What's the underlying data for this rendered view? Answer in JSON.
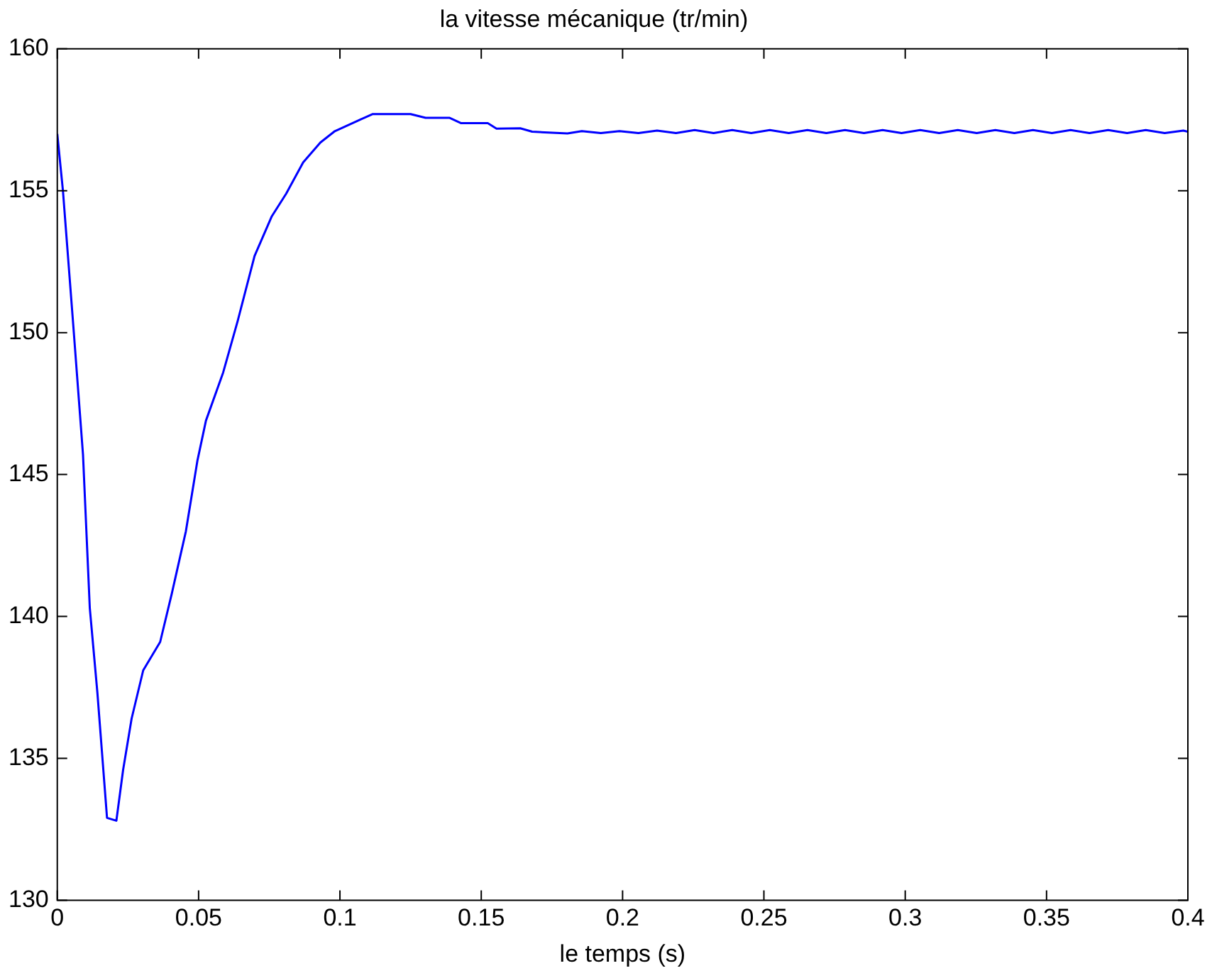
{
  "chart_data": {
    "type": "line",
    "title": "la vitesse mécanique (tr/min)",
    "xlabel": "le temps (s)",
    "xlim": [
      0,
      0.4
    ],
    "xticks": [
      0,
      0.05,
      0.1,
      0.15,
      0.2,
      0.25,
      0.3,
      0.35,
      0.4
    ],
    "ylim": [
      130,
      160
    ],
    "yticks": [
      130,
      135,
      140,
      145,
      150,
      155,
      160
    ],
    "grid": false,
    "legend": false,
    "marker": "none",
    "line_style": "solid",
    "series": [
      {
        "color": "#0000ff",
        "x": [
          0,
          0.002,
          0.0057,
          0.0091,
          0.0115,
          0.0142,
          0.0176,
          0.0209,
          0.0233,
          0.0263,
          0.0304,
          0.0364,
          0.0405,
          0.0455,
          0.0496,
          0.0526,
          0.0587,
          0.0638,
          0.0698,
          0.0759,
          0.081,
          0.087,
          0.0931,
          0.0982,
          0.107,
          0.1115,
          0.125,
          0.1303,
          0.1387,
          0.1429,
          0.1523,
          0.1554,
          0.1638,
          0.168,
          0.1805,
          0.1856,
          0.1923,
          0.1989,
          0.2056,
          0.2122,
          0.2189,
          0.2255,
          0.2322,
          0.2388,
          0.2455,
          0.2521,
          0.2588,
          0.2654,
          0.2721,
          0.2787,
          0.2854,
          0.292,
          0.2987,
          0.3053,
          0.312,
          0.3186,
          0.3253,
          0.3319,
          0.3386,
          0.3452,
          0.3519,
          0.3585,
          0.3652,
          0.3718,
          0.3785,
          0.3851,
          0.3918,
          0.3984,
          0.4
        ],
        "values": [
          157.0,
          155.0,
          150.2,
          145.7,
          140.3,
          137.3,
          132.9,
          132.8,
          134.6,
          136.4,
          138.1,
          139.1,
          140.8,
          143.0,
          145.5,
          146.9,
          148.6,
          150.4,
          152.7,
          154.1,
          154.9,
          156.0,
          156.7,
          157.1,
          157.5,
          157.7,
          157.7,
          157.57,
          157.57,
          157.38,
          157.38,
          157.19,
          157.2,
          157.08,
          157.02,
          157.1,
          157.03,
          157.1,
          157.03,
          157.12,
          157.03,
          157.14,
          157.03,
          157.14,
          157.03,
          157.14,
          157.03,
          157.14,
          157.03,
          157.14,
          157.03,
          157.14,
          157.03,
          157.14,
          157.03,
          157.14,
          157.03,
          157.14,
          157.03,
          157.14,
          157.03,
          157.14,
          157.03,
          157.14,
          157.03,
          157.14,
          157.03,
          157.12,
          157.08
        ]
      }
    ]
  }
}
